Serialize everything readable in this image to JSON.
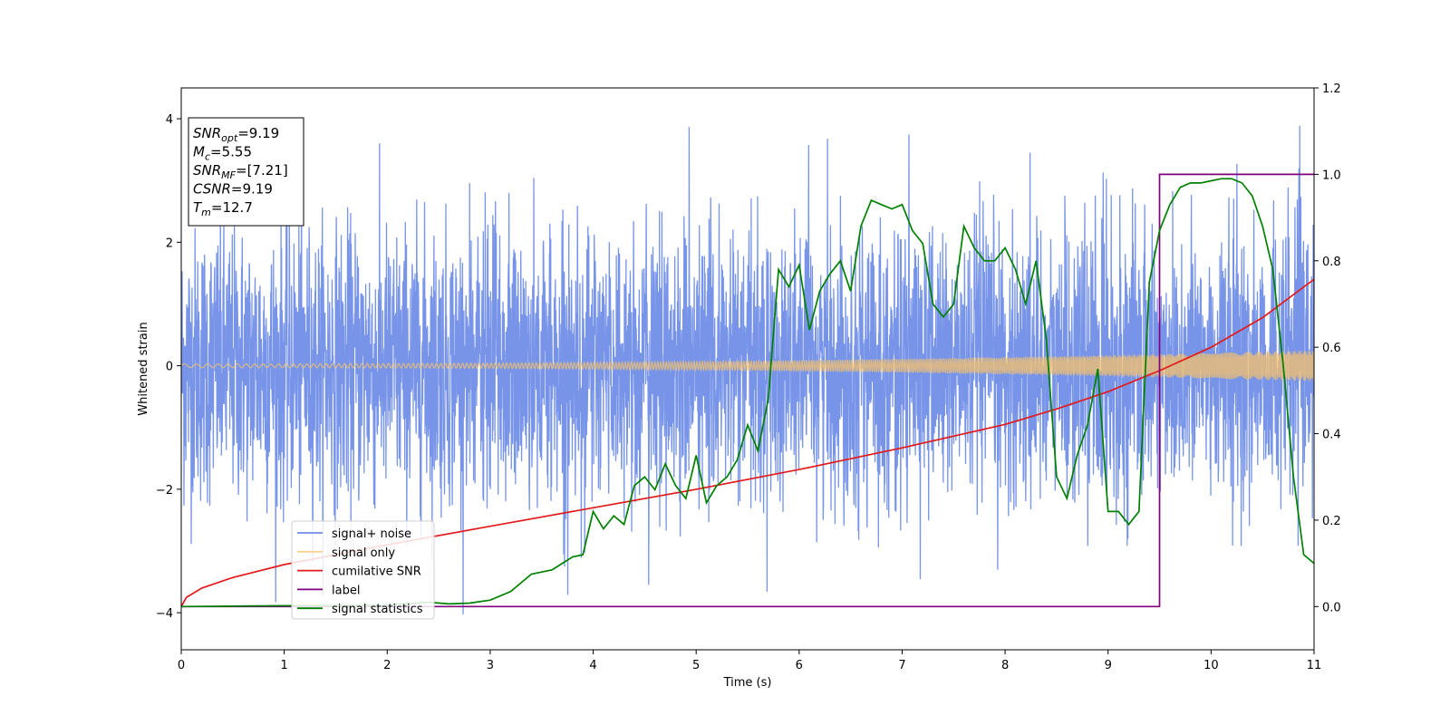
{
  "chart_data": {
    "type": "line",
    "xlabel": "Time (s)",
    "ylabel": "Whitened strain",
    "xlim": [
      0,
      11
    ],
    "ylim": [
      -4.6,
      4.5
    ],
    "ylim_right": [
      -0.1,
      1.2
    ],
    "xticks": [
      0,
      1,
      2,
      3,
      4,
      5,
      6,
      7,
      8,
      9,
      10,
      11
    ],
    "yticks": [
      -4,
      -2,
      0,
      2,
      4
    ],
    "yticks_right": [
      0.0,
      0.2,
      0.4,
      0.6,
      0.8,
      1.0,
      1.2
    ],
    "grid": false,
    "legend_position": "lower-left",
    "series": [
      {
        "name": "signal+ noise",
        "axis": "left",
        "color": "#6b8be6",
        "kind": "noise-band",
        "description_values": {
          "band": [
            -2.4,
            2.4
          ],
          "peak_max": 4.1,
          "peak_min": -4.15
        }
      },
      {
        "name": "signal only",
        "axis": "left",
        "color": "#f5c26b",
        "kind": "chirp",
        "amplitude_start": 0.03,
        "amplitude_end": 0.25
      },
      {
        "name": "cumilative SNR",
        "axis": "left",
        "color": "#e31a1c",
        "x": [
          0,
          0.05,
          0.2,
          0.5,
          1,
          2,
          3,
          4,
          5,
          6,
          7,
          8,
          8.5,
          9,
          9.5,
          10,
          10.5,
          11
        ],
        "y": [
          -3.9,
          -3.75,
          -3.6,
          -3.43,
          -3.22,
          -2.9,
          -2.6,
          -2.3,
          -2.0,
          -1.68,
          -1.33,
          -0.95,
          -0.7,
          -0.42,
          -0.08,
          0.3,
          0.78,
          1.4
        ]
      },
      {
        "name": "label",
        "axis": "right",
        "color": "#800080",
        "x": [
          0,
          9.43,
          9.43,
          9.5,
          9.5,
          11
        ],
        "y": [
          0,
          0,
          0.0,
          0.0,
          1.0,
          1.0
        ]
      },
      {
        "name": "signal statistics",
        "axis": "right",
        "color": "#008000",
        "x": [
          0,
          1,
          2,
          2.4,
          2.6,
          2.8,
          3,
          3.2,
          3.4,
          3.5,
          3.6,
          3.7,
          3.8,
          3.9,
          4,
          4.1,
          4.2,
          4.3,
          4.4,
          4.5,
          4.6,
          4.7,
          4.8,
          4.9,
          5,
          5.1,
          5.2,
          5.3,
          5.4,
          5.5,
          5.6,
          5.7,
          5.8,
          5.9,
          6,
          6.1,
          6.2,
          6.3,
          6.4,
          6.5,
          6.6,
          6.7,
          6.8,
          6.9,
          7,
          7.1,
          7.2,
          7.3,
          7.4,
          7.5,
          7.6,
          7.7,
          7.8,
          7.9,
          8,
          8.1,
          8.2,
          8.3,
          8.4,
          8.5,
          8.6,
          8.7,
          8.8,
          8.9,
          9,
          9.1,
          9.2,
          9.3,
          9.4,
          9.5,
          9.6,
          9.7,
          9.8,
          9.9,
          10,
          10.1,
          10.2,
          10.3,
          10.4,
          10.5,
          10.6,
          10.7,
          10.8,
          10.9,
          11
        ],
        "y": [
          0.0,
          0.002,
          0.003,
          0.01,
          0.006,
          0.008,
          0.015,
          0.035,
          0.075,
          0.08,
          0.085,
          0.1,
          0.115,
          0.12,
          0.22,
          0.18,
          0.21,
          0.19,
          0.28,
          0.3,
          0.27,
          0.33,
          0.28,
          0.25,
          0.35,
          0.24,
          0.28,
          0.3,
          0.34,
          0.42,
          0.36,
          0.48,
          0.78,
          0.74,
          0.79,
          0.64,
          0.73,
          0.77,
          0.8,
          0.73,
          0.88,
          0.94,
          0.93,
          0.92,
          0.93,
          0.87,
          0.84,
          0.7,
          0.67,
          0.7,
          0.88,
          0.83,
          0.8,
          0.8,
          0.83,
          0.78,
          0.7,
          0.8,
          0.62,
          0.3,
          0.25,
          0.35,
          0.42,
          0.55,
          0.22,
          0.22,
          0.19,
          0.22,
          0.75,
          0.87,
          0.93,
          0.97,
          0.98,
          0.98,
          0.985,
          0.99,
          0.99,
          0.98,
          0.95,
          0.88,
          0.78,
          0.56,
          0.3,
          0.12,
          0.1
        ]
      }
    ],
    "annotation_box": {
      "lines": [
        {
          "name": "SNR",
          "sub": "opt",
          "value": "=9.19"
        },
        {
          "name": "M",
          "sub": "c",
          "value": "=5.55"
        },
        {
          "name": "SNR",
          "sub": "MF",
          "value": "=[7.21]"
        },
        {
          "name": "CSNR",
          "sub": "",
          "value": "=9.19"
        },
        {
          "name": "T",
          "sub": "m",
          "value": "=12.7"
        }
      ]
    }
  }
}
